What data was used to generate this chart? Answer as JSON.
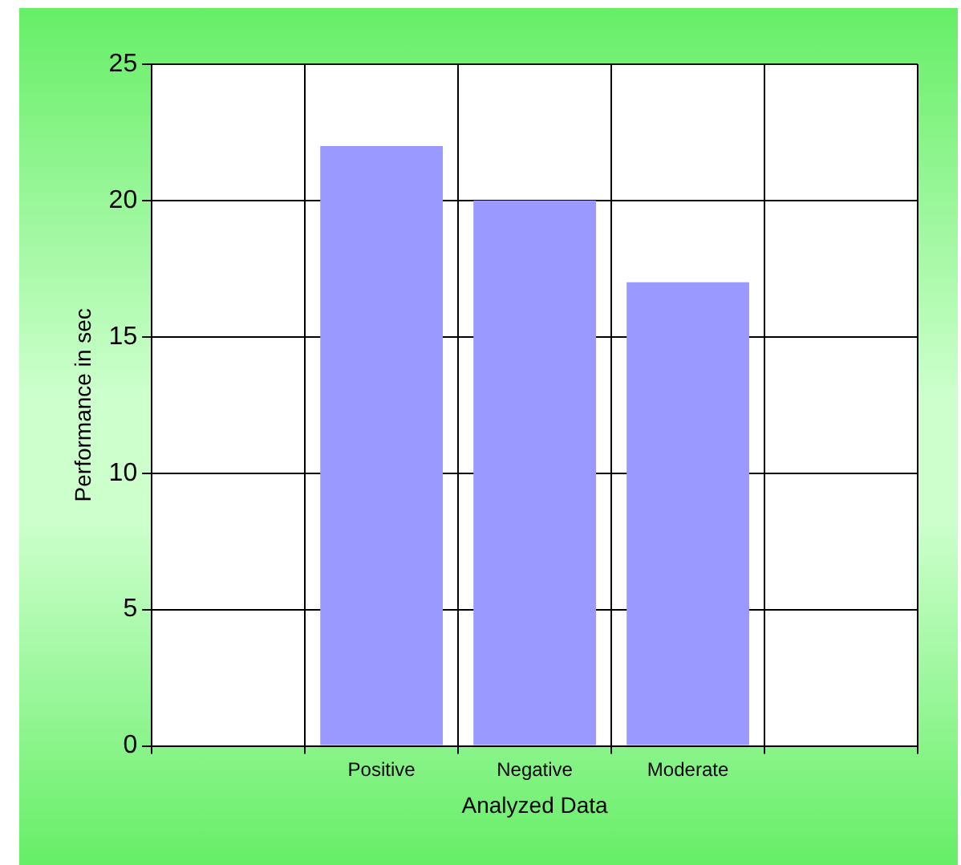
{
  "chart_data": {
    "type": "bar",
    "xlabel": "Analyzed Data",
    "ylabel": "Performance in sec",
    "categories": [
      "Positive",
      "Negative",
      "Moderate"
    ],
    "values": [
      22,
      20,
      17
    ],
    "color": "#9999ff",
    "ylim": [
      0,
      25
    ],
    "yticks": [
      0,
      5,
      10,
      15,
      20,
      25
    ],
    "grid": true
  }
}
